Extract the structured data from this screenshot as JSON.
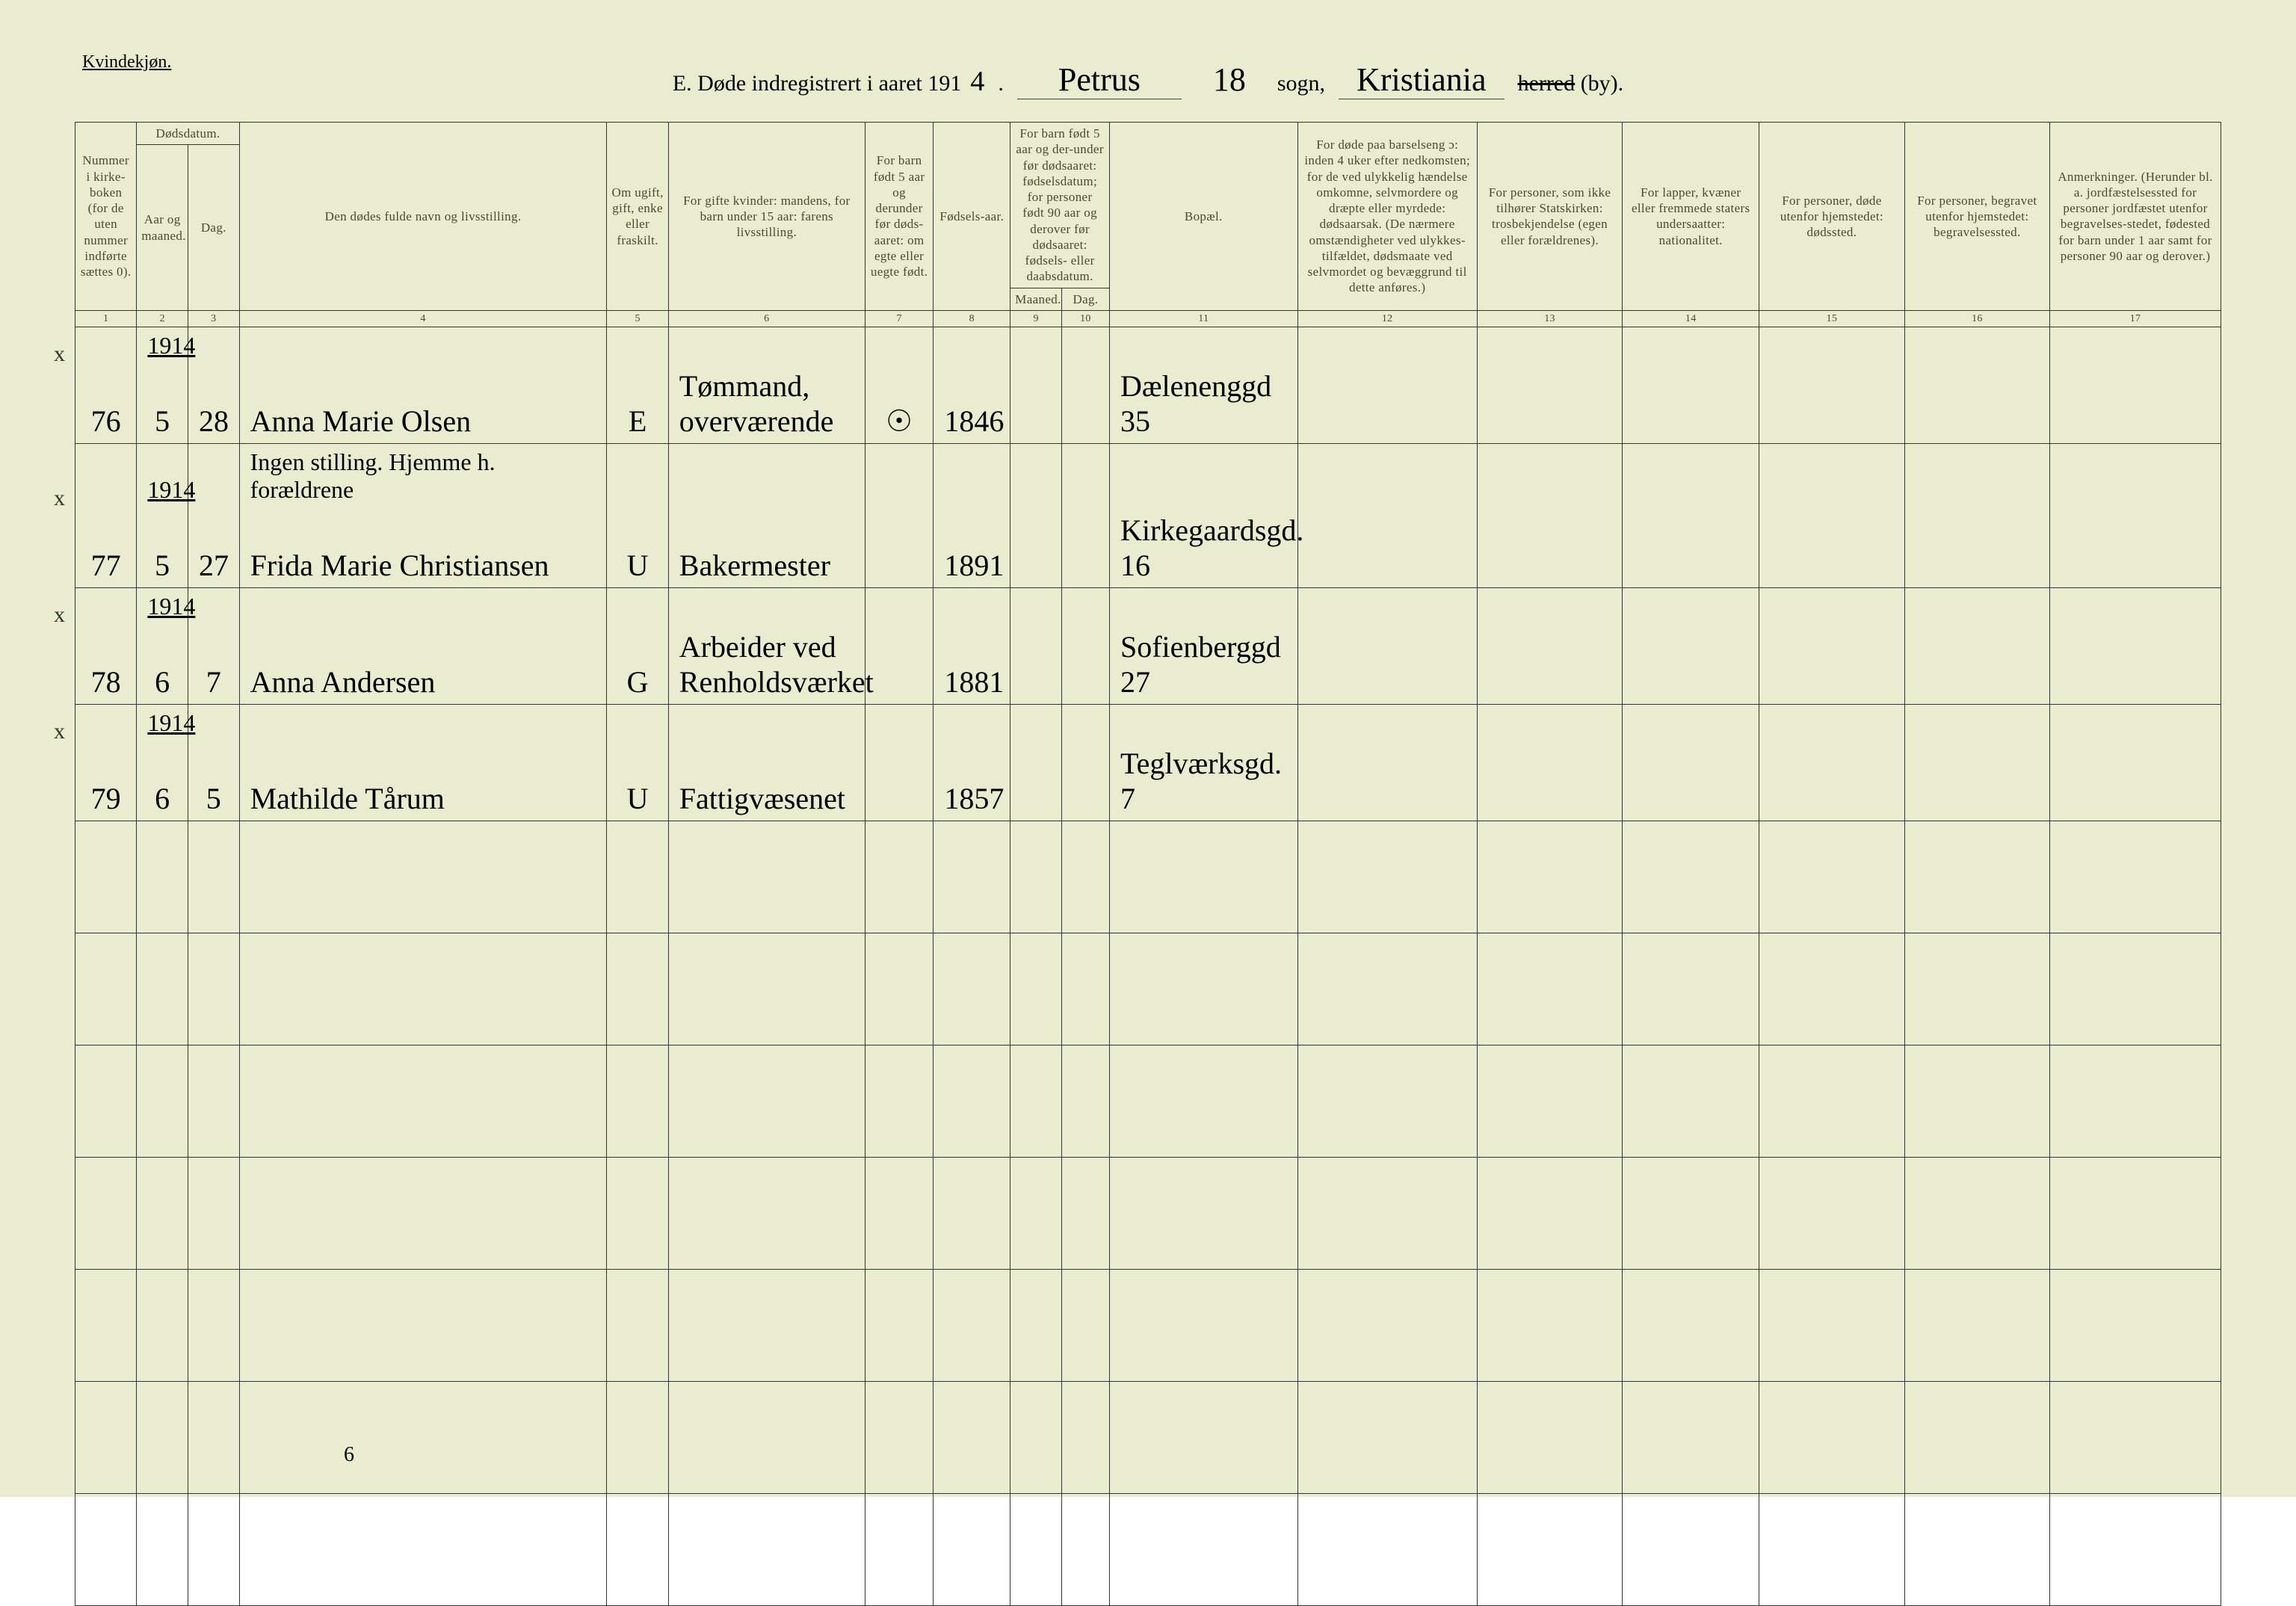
{
  "page": {
    "background_color": "#e9eccf",
    "header_text_color": "#4a4a2e",
    "line_color": "#333333",
    "handwriting_color": "#2b2b2b"
  },
  "top_label": "Kvindekjøn.",
  "title": {
    "prefix": "E.  Døde indregistrert i aaret 191",
    "year_suffix_hw": "4",
    "period": ".",
    "parish_hw": "Petrus",
    "mid1": "sogn,",
    "city_hw": "Kristiania",
    "mid2_strike": "herred",
    "mid2_paren": "(by).",
    "page_no_hw": "18"
  },
  "headers": {
    "c1": "Nummer i kirke-boken (for de uten nummer indførte sættes 0).",
    "c2_group": "Dødsdatum.",
    "c2": "Aar og maaned.",
    "c3": "Dag.",
    "c4": "Den dødes fulde navn og livsstilling.",
    "c5": "Om ugift, gift, enke eller fraskilt.",
    "c6": "For gifte kvinder: mandens, for barn under 15 aar: farens livsstilling.",
    "c7": "For barn født 5 aar og derunder før døds-aaret: om egte eller uegte født.",
    "c8": "Fødsels-aar.",
    "c9_10_group": "For barn født 5 aar og der-under før dødsaaret: fødselsdatum; for personer født 90 aar og derover før dødsaaret: fødsels- eller daabsdatum.",
    "c9": "Maaned.",
    "c10": "Dag.",
    "c11": "Bopæl.",
    "c12": "For døde paa barselseng ɔ: inden 4 uker efter nedkomsten; for de ved ulykkelig hændelse omkomne, selvmordere og dræpte eller myrdede: dødsaarsak. (De nærmere omstændigheter ved ulykkes-tilfældet, dødsmaate ved selvmordet og bevæggrund til dette anføres.)",
    "c13": "For personer, som ikke tilhører Statskirken: trosbekjendelse (egen eller forældrenes).",
    "c14": "For lapper, kvæner eller fremmede staters undersaatter: nationalitet.",
    "c15": "For personer, døde utenfor hjemstedet: dødssted.",
    "c16": "For personer, begravet utenfor hjemstedet: begravelsessted.",
    "c17": "Anmerkninger. (Herunder bl. a. jordfæstelsessted for personer jordfæstet utenfor begravelses-stedet, fødested for barn under 1 aar samt for personer 90 aar og derover.)"
  },
  "colnums": [
    "1",
    "2",
    "3",
    "4",
    "5",
    "6",
    "7",
    "8",
    "9",
    "10",
    "11",
    "12",
    "13",
    "14",
    "15",
    "16",
    "17"
  ],
  "rows": [
    {
      "x": true,
      "year": "1914",
      "no": "76",
      "month": "5",
      "day": "28",
      "name": "Anna Marie Olsen",
      "status": "E",
      "spouse": "Tømmand, overværende",
      "birth": "1846",
      "residence": "Dælenenggd 35",
      "extra_line": ""
    },
    {
      "x": true,
      "year": "1914",
      "no": "77",
      "month": "5",
      "day": "27",
      "name": "Frida Marie Christiansen",
      "status": "U",
      "spouse": "Bakermester",
      "birth": "1891",
      "residence": "Kirkegaardsgd. 16",
      "extra_line": "Ingen stilling. Hjemme h. forældrene"
    },
    {
      "x": true,
      "year": "1914",
      "no": "78",
      "month": "6",
      "day": "7",
      "name": "Anna Andersen",
      "status": "G",
      "spouse": "Arbeider ved Renholdsværket",
      "birth": "1881",
      "residence": "Sofienberggd 27",
      "extra_line": ""
    },
    {
      "x": true,
      "year": "1914",
      "no": "79",
      "month": "6",
      "day": "5",
      "name": "Mathilde Tårum",
      "status": "U",
      "spouse": "Fattigvæsenet",
      "birth": "1857",
      "residence": "Teglværksgd. 7",
      "extra_line": ""
    }
  ],
  "footer_mark": "6"
}
